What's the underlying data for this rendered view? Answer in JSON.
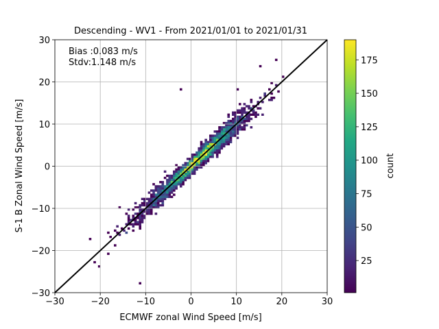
{
  "chart_data": {
    "type": "heatmap",
    "title": "Descending - WV1 - From 2021/01/01 to 2021/01/31",
    "xlabel": "ECMWF zonal Wind Speed [m/s]",
    "ylabel": "S-1 B Zonal Wind Speed [m/s]",
    "xlim": [
      -30,
      30
    ],
    "ylim": [
      -30,
      30
    ],
    "xticks": [
      -30,
      -20,
      -10,
      0,
      10,
      20,
      30
    ],
    "yticks": [
      -30,
      -20,
      -10,
      0,
      10,
      20,
      30
    ],
    "x_tick_labels": [
      "−30",
      "−20",
      "−10",
      "0",
      "10",
      "20",
      "30"
    ],
    "y_tick_labels": [
      "−30",
      "−20",
      "−10",
      "0",
      "10",
      "20",
      "30"
    ],
    "grid": true,
    "annotations": [
      "Bias :0.083 m/s",
      "Stdv:1.148 m/s"
    ],
    "reference_line": {
      "from": [
        -30,
        -30
      ],
      "to": [
        30,
        30
      ],
      "color": "#000000"
    },
    "colorbar": {
      "label": "count",
      "min": 1,
      "max": 190,
      "ticks": [
        25,
        50,
        75,
        100,
        125,
        150,
        175
      ],
      "tick_labels": [
        "25",
        "50",
        "75",
        "100",
        "125",
        "150",
        "175"
      ],
      "colormap": "viridis"
    },
    "bin_size": 0.5,
    "distribution": {
      "description_values": {
        "slope": 1.0,
        "intercept": 0.083,
        "spread_std": 1.148,
        "x_range": [
          -22.5,
          19.5
        ]
      }
    }
  }
}
